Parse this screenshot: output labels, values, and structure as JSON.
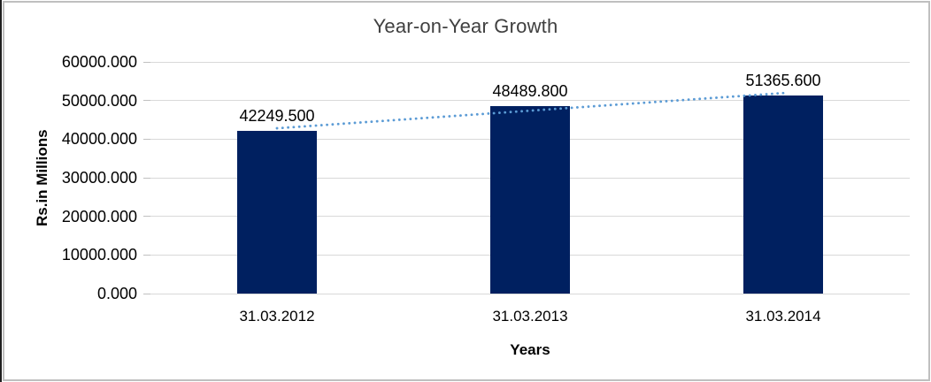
{
  "window": {
    "background": "#ffffff",
    "border_color": "#bfbfbf",
    "left_edge_color": "#1f1f1f"
  },
  "chart_data": {
    "type": "bar",
    "title": "Year-on-Year Growth",
    "xlabel": "Years",
    "ylabel": "Rs.in Millions",
    "categories": [
      "31.03.2012",
      "31.03.2013",
      "31.03.2014"
    ],
    "values": [
      42249.5,
      48489.8,
      51365.6
    ],
    "data_labels": [
      "42249.500",
      "48489.800",
      "51365.600"
    ],
    "ytick_values": [
      0,
      10000,
      20000,
      30000,
      40000,
      50000,
      60000
    ],
    "ytick_labels": [
      "0.000",
      "10000.000",
      "20000.000",
      "30000.000",
      "40000.000",
      "50000.000",
      "60000.000"
    ],
    "ylim": [
      0,
      60000
    ],
    "grid": true,
    "legend": "none",
    "bar_color": "#002060",
    "gridline_color": "#d9d9d9",
    "tick_color": "#c0c0c0",
    "title_color": "#404040",
    "text_color": "#000000",
    "trendline": {
      "type": "linear",
      "style": "dotted",
      "color": "#5b9bd5"
    }
  }
}
